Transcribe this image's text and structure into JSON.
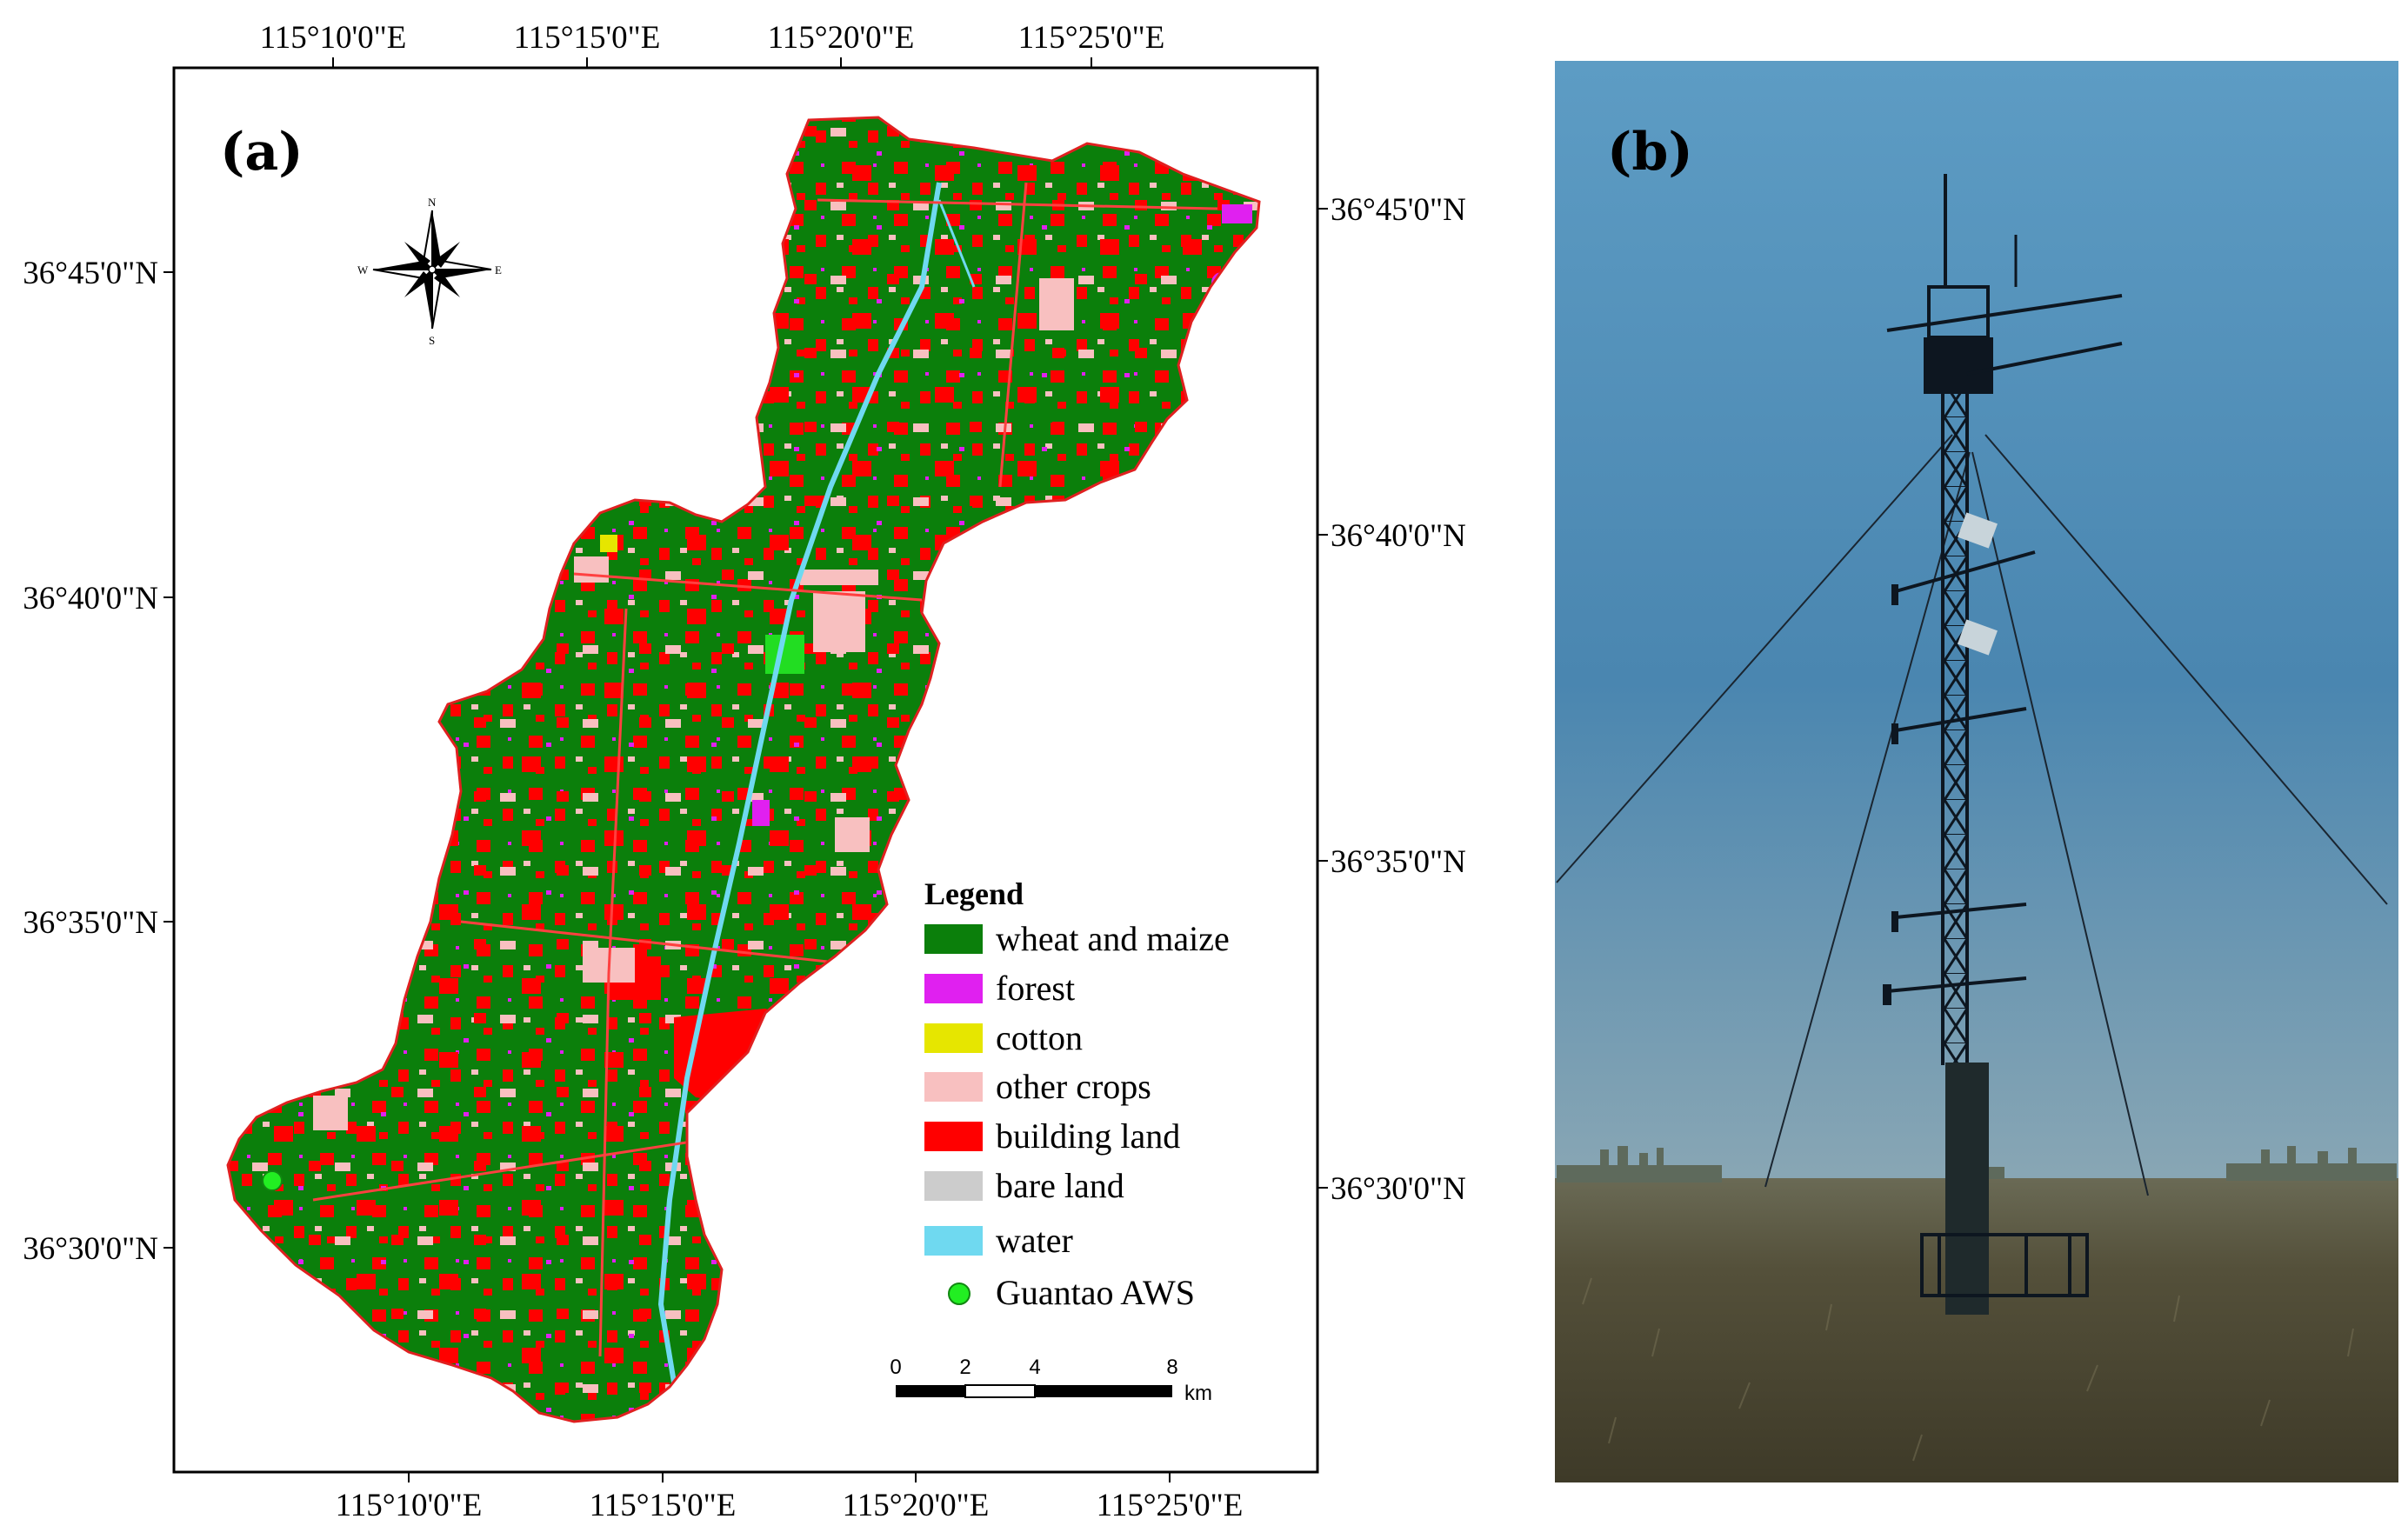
{
  "panel_a": {
    "label": "(a)",
    "top_ticks": [
      "115°10'0\"E",
      "115°15'0\"E",
      "115°20'0\"E",
      "115°25'0\"E"
    ],
    "bottom_ticks": [
      "115°10'0\"E",
      "115°15'0\"E",
      "115°20'0\"E",
      "115°25'0\"E"
    ],
    "left_ticks": [
      "36°45'0\"N",
      "36°40'0\"N",
      "36°35'0\"N",
      "36°30'0\"N"
    ],
    "right_ticks": [
      "36°45'0\"N",
      "36°40'0\"N",
      "36°35'0\"N",
      "36°30'0\"N"
    ],
    "compass": {
      "n": "N",
      "s": "S",
      "e": "E",
      "w": "W"
    },
    "legend": {
      "title": "Legend",
      "items": [
        {
          "label": "wheat and maize",
          "color": "#0b7f0b",
          "symbol": "rect"
        },
        {
          "label": "forest",
          "color": "#e020f0",
          "symbol": "rect"
        },
        {
          "label": "cotton",
          "color": "#e6e600",
          "symbol": "rect"
        },
        {
          "label": "other crops",
          "color": "#f8c0c0",
          "symbol": "rect"
        },
        {
          "label": "building land",
          "color": "#ff0000",
          "symbol": "rect"
        },
        {
          "label": "bare land",
          "color": "#cccccc",
          "symbol": "rect"
        },
        {
          "label": "water",
          "color": "#6fd9f0",
          "symbol": "rect"
        },
        {
          "label": "Guantao AWS",
          "color": "#22ee22",
          "symbol": "circle"
        }
      ]
    },
    "scale_bar": {
      "labels": [
        "0",
        "2",
        "4",
        "8"
      ],
      "unit": "km"
    }
  },
  "panel_b": {
    "label": "(b)",
    "colors": {
      "sky_top": "#5d9cc4",
      "sky_mid": "#4a86b0",
      "horizon": "#8aa7b4",
      "field": "#54503a"
    }
  }
}
